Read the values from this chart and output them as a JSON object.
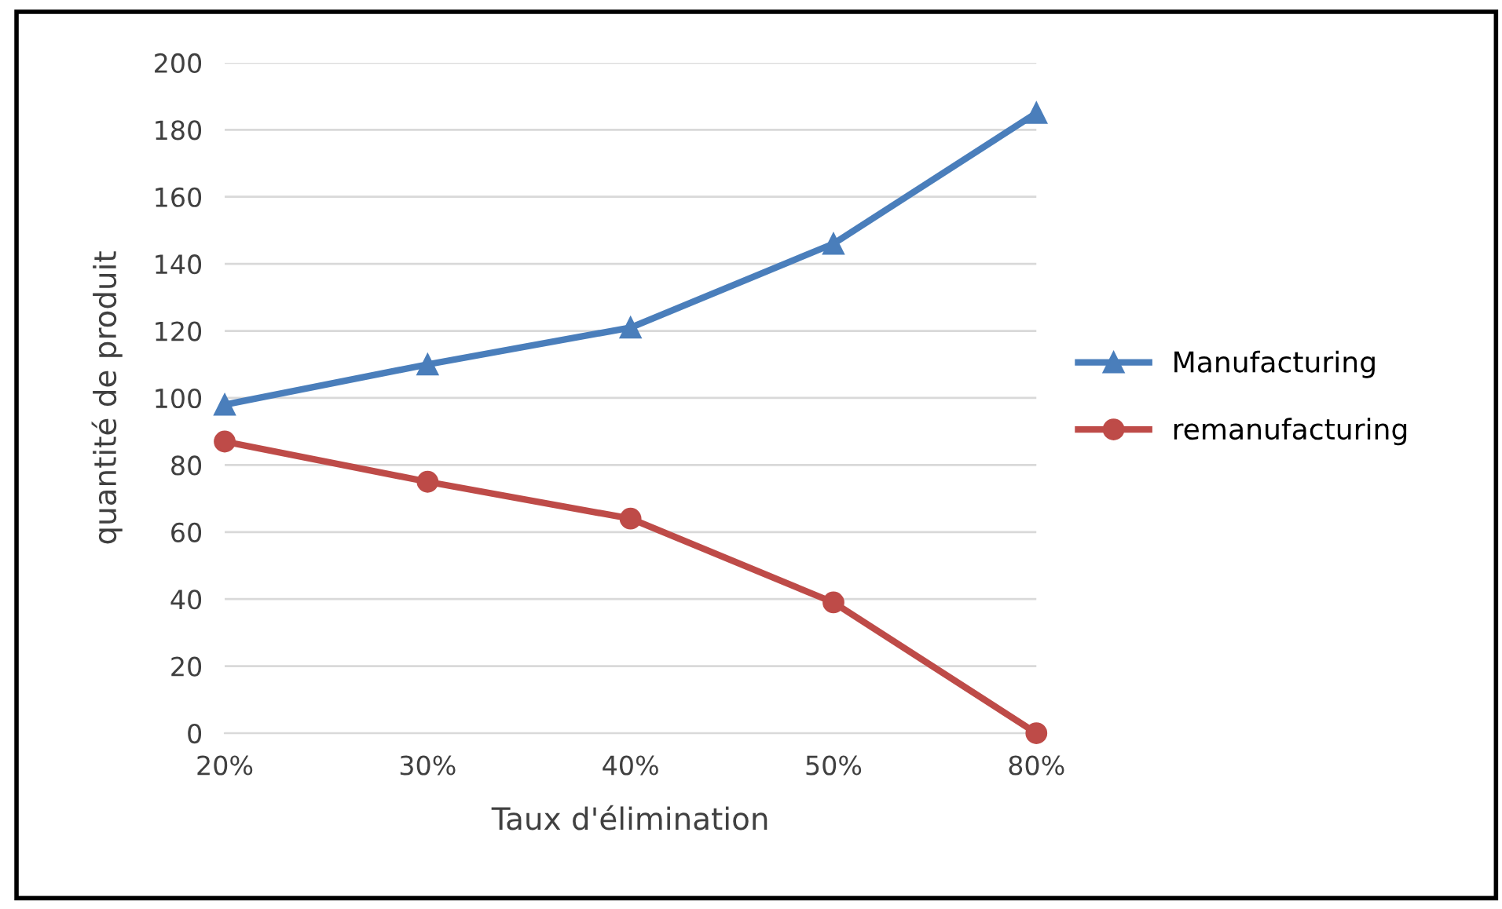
{
  "chart_data": {
    "type": "line",
    "xlabel": "Taux d'élimination",
    "ylabel": "quantité de produit",
    "categories": [
      "20%",
      "30%",
      "40%",
      "50%",
      "80%"
    ],
    "series": [
      {
        "name": "Manufacturing",
        "color": "#4a7ebb",
        "marker": "triangle",
        "values": [
          98,
          110,
          121,
          146,
          185
        ]
      },
      {
        "name": "remanufacturing",
        "color": "#be4b48",
        "marker": "circle",
        "values": [
          87,
          75,
          64,
          39,
          0
        ]
      }
    ],
    "ylim": [
      0,
      200
    ],
    "yticks": [
      0,
      20,
      40,
      60,
      80,
      100,
      120,
      140,
      160,
      180,
      200
    ],
    "grid": "y",
    "legend": "right",
    "line_style": "solid"
  }
}
